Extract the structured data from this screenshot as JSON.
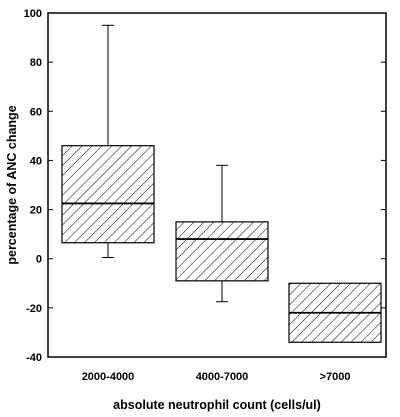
{
  "chart_data": {
    "type": "box",
    "xlabel": "absolute neutrophil count (cells/ul)",
    "ylabel": "percentage of ANC change",
    "ylim": [
      -40,
      100
    ],
    "yticks": [
      -40,
      -20,
      0,
      20,
      40,
      60,
      80,
      100
    ],
    "categories": [
      "2000-4000",
      "4000-7000",
      ">7000"
    ],
    "boxes": [
      {
        "category": "2000-4000",
        "whisker_low": 0.5,
        "q1": 6.5,
        "median": 22.5,
        "q3": 46,
        "whisker_high": 95
      },
      {
        "category": "4000-7000",
        "whisker_low": -17.5,
        "q1": -9,
        "median": 8,
        "q3": 15,
        "whisker_high": 38
      },
      {
        "category": ">7000",
        "whisker_low": null,
        "q1": -34,
        "median": -22,
        "q3": -10,
        "whisker_high": null
      }
    ],
    "box_fill": "diagonal-hatch",
    "colors": {
      "stroke": "#000000",
      "background": "#ffffff"
    },
    "grid": false,
    "legend": "none"
  }
}
